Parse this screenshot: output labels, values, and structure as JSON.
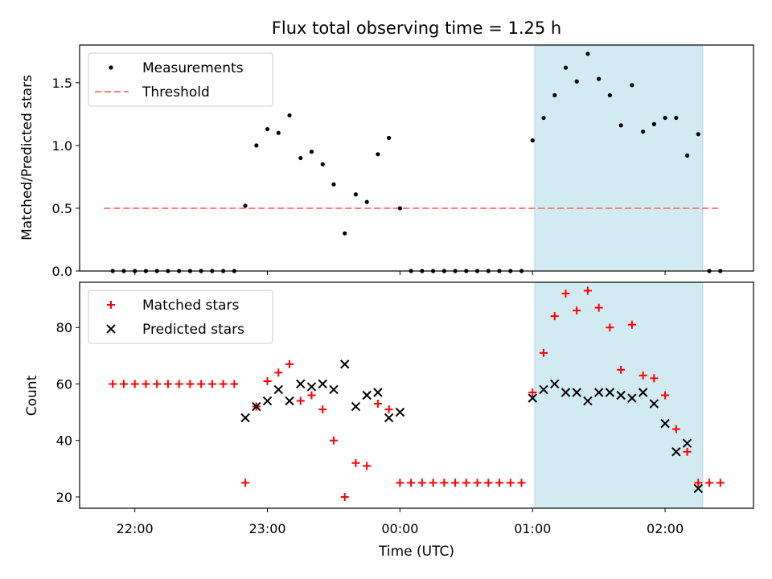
{
  "title": "Flux total observing time = 1.25 h",
  "xlabel": "Time (UTC)",
  "x_ticks": [
    "22:00",
    "23:00",
    "00:00",
    "01:00",
    "02:00"
  ],
  "colors": {
    "shade": "#add8e6",
    "threshold": "#ff7f7f",
    "measurements": "#000000",
    "matched": "#ff0000",
    "predicted": "#000000"
  },
  "chart_data": [
    {
      "type": "scatter",
      "ylabel": "Matched/Predicted stars",
      "ylim": [
        0,
        1.8
      ],
      "y_ticks": [
        0.0,
        0.5,
        1.0,
        1.5
      ],
      "y_tick_labels": [
        "0.0",
        "0.5",
        "1.0",
        "1.5"
      ],
      "xlim": [
        "21:35",
        "02:40"
      ],
      "shaded_span": [
        "01:01",
        "02:17"
      ],
      "threshold": {
        "y": 0.5,
        "x_start": "21:46",
        "x_end": "02:25"
      },
      "legend": {
        "loc": "upper-left",
        "entries": [
          "Measurements",
          "Threshold"
        ]
      },
      "series": [
        {
          "name": "Measurements",
          "x": [
            "21:50",
            "21:55",
            "22:00",
            "22:05",
            "22:10",
            "22:15",
            "22:20",
            "22:25",
            "22:30",
            "22:35",
            "22:40",
            "22:45",
            "22:50",
            "22:55",
            "23:00",
            "23:05",
            "23:10",
            "23:15",
            "23:20",
            "23:25",
            "23:30",
            "23:35",
            "23:40",
            "23:45",
            "23:50",
            "23:55",
            "00:00",
            "00:05",
            "00:10",
            "00:15",
            "00:20",
            "00:25",
            "00:30",
            "00:35",
            "00:40",
            "00:45",
            "00:50",
            "00:55",
            "01:00",
            "01:05",
            "01:10",
            "01:15",
            "01:20",
            "01:25",
            "01:30",
            "01:35",
            "01:40",
            "01:45",
            "01:50",
            "01:55",
            "02:00",
            "02:05",
            "02:10",
            "02:15",
            "02:20",
            "02:25"
          ],
          "y": [
            0,
            0,
            0,
            0,
            0,
            0,
            0,
            0,
            0,
            0,
            0,
            0,
            0.52,
            1.0,
            1.13,
            1.1,
            1.24,
            0.9,
            0.95,
            0.85,
            0.69,
            0.3,
            0.61,
            0.55,
            0.93,
            1.06,
            0.5,
            0,
            0,
            0,
            0,
            0,
            0,
            0,
            0,
            0,
            0,
            0,
            1.04,
            1.22,
            1.4,
            1.62,
            1.51,
            1.73,
            1.53,
            1.4,
            1.16,
            1.48,
            1.11,
            1.17,
            1.22,
            1.22,
            0.92,
            1.09,
            0,
            0
          ]
        }
      ]
    },
    {
      "type": "scatter",
      "ylabel": "Count",
      "ylim": [
        16,
        96
      ],
      "y_ticks": [
        20,
        40,
        60,
        80
      ],
      "y_tick_labels": [
        "20",
        "40",
        "60",
        "80"
      ],
      "xlim": [
        "21:35",
        "02:40"
      ],
      "shaded_span": [
        "01:01",
        "02:17"
      ],
      "legend": {
        "loc": "upper-left",
        "entries": [
          "Matched stars",
          "Predicted stars"
        ]
      },
      "series": [
        {
          "name": "Matched stars",
          "x": [
            "21:50",
            "21:55",
            "22:00",
            "22:05",
            "22:10",
            "22:15",
            "22:20",
            "22:25",
            "22:30",
            "22:35",
            "22:40",
            "22:45",
            "22:50",
            "22:55",
            "23:00",
            "23:05",
            "23:10",
            "23:15",
            "23:20",
            "23:25",
            "23:30",
            "23:35",
            "23:40",
            "23:45",
            "23:50",
            "23:55",
            "00:00",
            "00:05",
            "00:10",
            "00:15",
            "00:20",
            "00:25",
            "00:30",
            "00:35",
            "00:40",
            "00:45",
            "00:50",
            "00:55",
            "01:00",
            "01:05",
            "01:10",
            "01:15",
            "01:20",
            "01:25",
            "01:30",
            "01:35",
            "01:40",
            "01:45",
            "01:50",
            "01:55",
            "02:00",
            "02:05",
            "02:10",
            "02:15",
            "02:20",
            "02:25"
          ],
          "y": [
            60,
            60,
            60,
            60,
            60,
            60,
            60,
            60,
            60,
            60,
            60,
            60,
            25,
            52,
            61,
            64,
            67,
            54,
            56,
            51,
            40,
            20,
            32,
            31,
            53,
            51,
            25,
            25,
            25,
            25,
            25,
            25,
            25,
            25,
            25,
            25,
            25,
            25,
            57,
            71,
            84,
            92,
            86,
            93,
            87,
            80,
            65,
            81,
            63,
            62,
            56,
            44,
            36,
            25,
            25,
            25
          ]
        },
        {
          "name": "Predicted stars",
          "x": [
            "22:50",
            "22:55",
            "23:00",
            "23:05",
            "23:10",
            "23:15",
            "23:20",
            "23:25",
            "23:30",
            "23:35",
            "23:40",
            "23:45",
            "23:50",
            "23:55",
            "00:00",
            "01:00",
            "01:05",
            "01:10",
            "01:15",
            "01:20",
            "01:25",
            "01:30",
            "01:35",
            "01:40",
            "01:45",
            "01:50",
            "01:55",
            "02:00",
            "02:05",
            "02:10",
            "02:15"
          ],
          "y": [
            48,
            52,
            54,
            58,
            54,
            60,
            59,
            60,
            58,
            67,
            52,
            56,
            57,
            48,
            50,
            55,
            58,
            60,
            57,
            57,
            54,
            57,
            57,
            56,
            55,
            57,
            53,
            46,
            36,
            39,
            23
          ]
        }
      ]
    }
  ]
}
